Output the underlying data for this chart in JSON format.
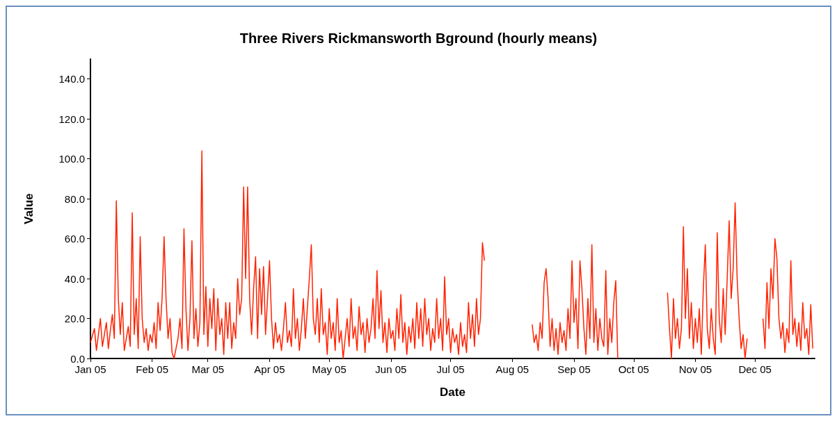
{
  "chart_data": {
    "type": "line",
    "title": "Three Rivers Rickmansworth Bground (hourly means)",
    "xlabel": "Date",
    "ylabel": "Value",
    "color": "#ff2200",
    "marker": "none",
    "line_style": "solid",
    "grid": false,
    "xlim": [
      "2005-01-01",
      "2005-12-31"
    ],
    "xticks": [
      {
        "value": "2005-01-01",
        "label": "Jan 05"
      },
      {
        "value": "2005-02-01",
        "label": "Feb 05"
      },
      {
        "value": "2005-03-01",
        "label": "Mar 05"
      },
      {
        "value": "2005-04-01",
        "label": "Apr 05"
      },
      {
        "value": "2005-05-01",
        "label": "May 05"
      },
      {
        "value": "2005-06-01",
        "label": "Jun 05"
      },
      {
        "value": "2005-07-01",
        "label": "Jul 05"
      },
      {
        "value": "2005-08-01",
        "label": "Aug 05"
      },
      {
        "value": "2005-09-01",
        "label": "Sep 05"
      },
      {
        "value": "2005-10-01",
        "label": "Oct 05"
      },
      {
        "value": "2005-11-01",
        "label": "Nov 05"
      },
      {
        "value": "2005-12-01",
        "label": "Dec 05"
      }
    ],
    "ylim": [
      0,
      150
    ],
    "yticks": [
      {
        "value": 0,
        "label": "0.0"
      },
      {
        "value": 20,
        "label": "20.0"
      },
      {
        "value": 40,
        "label": "40.0"
      },
      {
        "value": 60,
        "label": "60.0"
      },
      {
        "value": 80,
        "label": "80.0"
      },
      {
        "value": 100,
        "label": "100.0"
      },
      {
        "value": 120,
        "label": "120.0"
      },
      {
        "value": 140,
        "label": "140.0"
      }
    ],
    "x": [
      "2005-01-01",
      "2005-01-03",
      "2005-01-04",
      "2005-01-06",
      "2005-01-07",
      "2005-01-09",
      "2005-01-10",
      "2005-01-11",
      "2005-01-12",
      "2005-01-13",
      "2005-01-14",
      "2005-01-15",
      "2005-01-16",
      "2005-01-17",
      "2005-01-18",
      "2005-01-19",
      "2005-01-20",
      "2005-01-21",
      "2005-01-22",
      "2005-01-23",
      "2005-01-24",
      "2005-01-25",
      "2005-01-26",
      "2005-01-27",
      "2005-01-28",
      "2005-01-29",
      "2005-01-30",
      "2005-01-31",
      "2005-02-01",
      "2005-02-02",
      "2005-02-03",
      "2005-02-04",
      "2005-02-05",
      "2005-02-06",
      "2005-02-07",
      "2005-02-08",
      "2005-02-09",
      "2005-02-10",
      "2005-02-11",
      "2005-02-12",
      "2005-02-13",
      "2005-02-14",
      "2005-02-15",
      "2005-02-16",
      "2005-02-17",
      "2005-02-18",
      "2005-02-19",
      "2005-02-20",
      "2005-02-21",
      "2005-02-22",
      "2005-02-23",
      "2005-02-24",
      "2005-02-25",
      "2005-02-26",
      "2005-02-27",
      "2005-02-28",
      "2005-03-01",
      "2005-03-02",
      "2005-03-03",
      "2005-03-04",
      "2005-03-05",
      "2005-03-06",
      "2005-03-07",
      "2005-03-08",
      "2005-03-09",
      "2005-03-10",
      "2005-03-11",
      "2005-03-12",
      "2005-03-13",
      "2005-03-14",
      "2005-03-15",
      "2005-03-16",
      "2005-03-17",
      "2005-03-18",
      "2005-03-19",
      "2005-03-20",
      "2005-03-21",
      "2005-03-22",
      "2005-03-23",
      "2005-03-24",
      "2005-03-25",
      "2005-03-26",
      "2005-03-27",
      "2005-03-28",
      "2005-03-29",
      "2005-03-30",
      "2005-03-31",
      "2005-04-01",
      "2005-04-02",
      "2005-04-03",
      "2005-04-04",
      "2005-04-05",
      "2005-04-06",
      "2005-04-07",
      "2005-04-08",
      "2005-04-09",
      "2005-04-10",
      "2005-04-11",
      "2005-04-12",
      "2005-04-13",
      "2005-04-14",
      "2005-04-15",
      "2005-04-16",
      "2005-04-17",
      "2005-04-18",
      "2005-04-19",
      "2005-04-20",
      "2005-04-21",
      "2005-04-22",
      "2005-04-23",
      "2005-04-24",
      "2005-04-25",
      "2005-04-26",
      "2005-04-27",
      "2005-04-28",
      "2005-04-29",
      "2005-04-30",
      "2005-05-01",
      "2005-05-02",
      "2005-05-03",
      "2005-05-04",
      "2005-05-05",
      "2005-05-06",
      "2005-05-07",
      "2005-05-08",
      "2005-05-09",
      "2005-05-10",
      "2005-05-11",
      "2005-05-12",
      "2005-05-13",
      "2005-05-14",
      "2005-05-15",
      "2005-05-16",
      "2005-05-17",
      "2005-05-18",
      "2005-05-19",
      "2005-05-20",
      "2005-05-21",
      "2005-05-22",
      "2005-05-23",
      "2005-05-24",
      "2005-05-25",
      "2005-05-26",
      "2005-05-27",
      "2005-05-28",
      "2005-05-29",
      "2005-05-30",
      "2005-05-31",
      "2005-06-01",
      "2005-06-02",
      "2005-06-03",
      "2005-06-04",
      "2005-06-05",
      "2005-06-06",
      "2005-06-07",
      "2005-06-08",
      "2005-06-09",
      "2005-06-10",
      "2005-06-11",
      "2005-06-12",
      "2005-06-13",
      "2005-06-14",
      "2005-06-15",
      "2005-06-16",
      "2005-06-17",
      "2005-06-18",
      "2005-06-19",
      "2005-06-20",
      "2005-06-21",
      "2005-06-22",
      "2005-06-23",
      "2005-06-24",
      "2005-06-25",
      "2005-06-26",
      "2005-06-27",
      "2005-06-28",
      "2005-06-29",
      "2005-06-30",
      "2005-07-01",
      "2005-07-02",
      "2005-07-03",
      "2005-07-04",
      "2005-07-05",
      "2005-07-06",
      "2005-07-07",
      "2005-07-08",
      "2005-07-09",
      "2005-07-10",
      "2005-07-11",
      "2005-07-12",
      "2005-07-13",
      "2005-07-14",
      "2005-07-15",
      "2005-07-16",
      "2005-07-17",
      "2005-07-18",
      "2005-07-25",
      "2005-08-11",
      "2005-08-12",
      "2005-08-13",
      "2005-08-14",
      "2005-08-15",
      "2005-08-16",
      "2005-08-17",
      "2005-08-18",
      "2005-08-19",
      "2005-08-20",
      "2005-08-21",
      "2005-08-22",
      "2005-08-23",
      "2005-08-24",
      "2005-08-25",
      "2005-08-26",
      "2005-08-27",
      "2005-08-28",
      "2005-08-29",
      "2005-08-30",
      "2005-08-31",
      "2005-09-01",
      "2005-09-02",
      "2005-09-03",
      "2005-09-04",
      "2005-09-05",
      "2005-09-06",
      "2005-09-07",
      "2005-09-08",
      "2005-09-09",
      "2005-09-10",
      "2005-09-11",
      "2005-09-12",
      "2005-09-13",
      "2005-09-14",
      "2005-09-15",
      "2005-09-16",
      "2005-09-17",
      "2005-09-18",
      "2005-09-19",
      "2005-09-20",
      "2005-09-21",
      "2005-09-22",
      "2005-09-23",
      "2005-10-05",
      "2005-10-18",
      "2005-10-19",
      "2005-10-20",
      "2005-10-21",
      "2005-10-22",
      "2005-10-23",
      "2005-10-24",
      "2005-10-25",
      "2005-10-26",
      "2005-10-27",
      "2005-10-28",
      "2005-10-29",
      "2005-10-30",
      "2005-10-31",
      "2005-11-01",
      "2005-11-02",
      "2005-11-03",
      "2005-11-04",
      "2005-11-05",
      "2005-11-06",
      "2005-11-07",
      "2005-11-08",
      "2005-11-09",
      "2005-11-10",
      "2005-11-11",
      "2005-11-12",
      "2005-11-13",
      "2005-11-14",
      "2005-11-15",
      "2005-11-16",
      "2005-11-17",
      "2005-11-18",
      "2005-11-19",
      "2005-11-20",
      "2005-11-21",
      "2005-11-22",
      "2005-11-23",
      "2005-11-24",
      "2005-11-25",
      "2005-11-26",
      "2005-11-27",
      "2005-12-02",
      "2005-12-05",
      "2005-12-06",
      "2005-12-07",
      "2005-12-08",
      "2005-12-09",
      "2005-12-10",
      "2005-12-11",
      "2005-12-12",
      "2005-12-13",
      "2005-12-14",
      "2005-12-15",
      "2005-12-16",
      "2005-12-17",
      "2005-12-18",
      "2005-12-19",
      "2005-12-20",
      "2005-12-21",
      "2005-12-22",
      "2005-12-23",
      "2005-12-24",
      "2005-12-25",
      "2005-12-26",
      "2005-12-27",
      "2005-12-28",
      "2005-12-29",
      "2005-12-30"
    ],
    "values": [
      8,
      15,
      4,
      20,
      6,
      18,
      5,
      14,
      22,
      10,
      79,
      30,
      12,
      28,
      4,
      10,
      16,
      6,
      73,
      12,
      30,
      5,
      61,
      20,
      8,
      15,
      4,
      12,
      8,
      18,
      5,
      28,
      14,
      30,
      61,
      30,
      10,
      20,
      3,
      0,
      5,
      10,
      20,
      5,
      65,
      25,
      4,
      20,
      59,
      10,
      25,
      6,
      18,
      104,
      12,
      36,
      6,
      30,
      15,
      35,
      4,
      30,
      12,
      20,
      2,
      28,
      10,
      28,
      5,
      18,
      10,
      40,
      22,
      30,
      86,
      40,
      86,
      30,
      12,
      35,
      51,
      10,
      45,
      22,
      46,
      12,
      30,
      49,
      20,
      5,
      18,
      8,
      12,
      4,
      15,
      28,
      8,
      14,
      6,
      35,
      10,
      20,
      4,
      15,
      30,
      10,
      25,
      40,
      57,
      20,
      12,
      30,
      8,
      35,
      12,
      18,
      2,
      25,
      10,
      18,
      4,
      30,
      8,
      14,
      0,
      10,
      20,
      6,
      30,
      10,
      16,
      4,
      26,
      12,
      18,
      3,
      20,
      8,
      15,
      30,
      10,
      44,
      15,
      34,
      8,
      18,
      3,
      20,
      10,
      14,
      4,
      25,
      10,
      32,
      8,
      18,
      2,
      16,
      8,
      20,
      5,
      28,
      10,
      25,
      6,
      30,
      12,
      20,
      4,
      15,
      8,
      30,
      10,
      20,
      4,
      41,
      12,
      20,
      3,
      15,
      8,
      12,
      2,
      18,
      6,
      12,
      3,
      28,
      10,
      22,
      6,
      30,
      12,
      20,
      58,
      49,
      null,
      17,
      8,
      12,
      4,
      18,
      10,
      38,
      45,
      30,
      6,
      20,
      4,
      15,
      2,
      18,
      8,
      14,
      4,
      25,
      10,
      49,
      18,
      30,
      5,
      49,
      35,
      15,
      2,
      30,
      10,
      57,
      8,
      25,
      4,
      20,
      10,
      6,
      44,
      2,
      20,
      8,
      28,
      39,
      0,
      null,
      33,
      15,
      0,
      30,
      10,
      20,
      5,
      15,
      66,
      20,
      45,
      10,
      28,
      5,
      20,
      8,
      25,
      2,
      35,
      57,
      15,
      5,
      25,
      10,
      2,
      63,
      20,
      8,
      35,
      12,
      40,
      69,
      30,
      45,
      78,
      40,
      20,
      5,
      12,
      0,
      10,
      null,
      20,
      5,
      38,
      15,
      45,
      30,
      60,
      50,
      20,
      10,
      18,
      3,
      15,
      8,
      49,
      12,
      20,
      6,
      18,
      4,
      28,
      10,
      15,
      2,
      27,
      5
    ]
  }
}
